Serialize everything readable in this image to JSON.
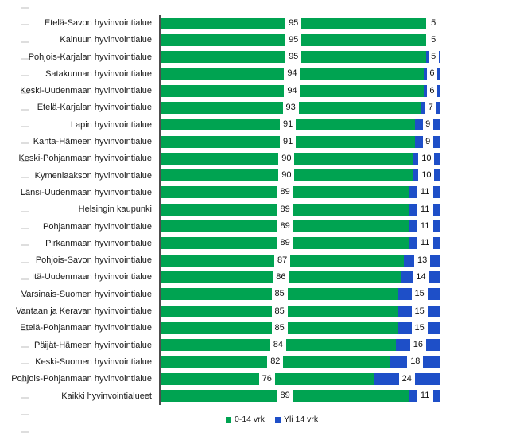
{
  "chart_data": {
    "type": "bar",
    "orientation": "horizontal",
    "stacked": true,
    "percent_total": 100,
    "xlim": [
      0,
      100
    ],
    "grid": false,
    "legend_position": "bottom",
    "series_meta": [
      {
        "name": "0-14 vrk",
        "color": "#00A351"
      },
      {
        "name": "Yli 14 vrk",
        "color": "#1E4FC8"
      }
    ],
    "categories": [
      "Etelä-Savon hyvinvointialue",
      "Kainuun hyvinvointialue",
      "Pohjois-Karjalan hyvinvointialue",
      "Satakunnan hyvinvointialue",
      "Keski-Uudenmaan hyvinvointialue",
      "Etelä-Karjalan hyvinvointialue",
      "Lapin hyvinvointialue",
      "Kanta-Hämeen hyvinvointialue",
      "Keski-Pohjanmaan hyvinvointialue",
      "Kymenlaakson hyvinvointialue",
      "Länsi-Uudenmaan hyvinvointialue",
      "Helsingin kaupunki",
      "Pohjanmaan hyvinvointialue",
      "Pirkanmaan hyvinvointialue",
      "Pohjois-Savon hyvinvointialue",
      "Itä-Uudenmaan hyvinvointialue",
      "Varsinais-Suomen hyvinvointialue",
      "Vantaan ja Keravan hyvinvointialue",
      "Etelä-Pohjanmaan hyvinvointialue",
      "Päijät-Hämeen hyvinvointialue",
      "Keski-Suomen hyvinvointialue",
      "Pohjois-Pohjanmaan hyvinvointialue",
      "Kaikki hyvinvointialueet"
    ],
    "rows": [
      {
        "label": "Etelä-Savon hyvinvointialue",
        "green": 95,
        "blue": 5,
        "blue_segment_visible": false
      },
      {
        "label": "Kainuun hyvinvointialue",
        "green": 95,
        "blue": 5,
        "blue_segment_visible": false
      },
      {
        "label": "Pohjois-Karjalan hyvinvointialue",
        "green": 95,
        "blue": 5,
        "blue_segment_visible": true
      },
      {
        "label": "Satakunnan hyvinvointialue",
        "green": 94,
        "blue": 6,
        "blue_segment_visible": true
      },
      {
        "label": "Keski-Uudenmaan hyvinvointialue",
        "green": 94,
        "blue": 6,
        "blue_segment_visible": true
      },
      {
        "label": "Etelä-Karjalan hyvinvointialue",
        "green": 93,
        "blue": 7,
        "blue_segment_visible": true
      },
      {
        "label": "Lapin hyvinvointialue",
        "green": 91,
        "blue": 9,
        "blue_segment_visible": true
      },
      {
        "label": "Kanta-Hämeen hyvinvointialue",
        "green": 91,
        "blue": 9,
        "blue_segment_visible": true
      },
      {
        "label": "Keski-Pohjanmaan hyvinvointialue",
        "green": 90,
        "blue": 10,
        "blue_segment_visible": true
      },
      {
        "label": "Kymenlaakson hyvinvointialue",
        "green": 90,
        "blue": 10,
        "blue_segment_visible": true
      },
      {
        "label": "Länsi-Uudenmaan hyvinvointialue",
        "green": 89,
        "blue": 11,
        "blue_segment_visible": true
      },
      {
        "label": "Helsingin kaupunki",
        "green": 89,
        "blue": 11,
        "blue_segment_visible": true
      },
      {
        "label": "Pohjanmaan hyvinvointialue",
        "green": 89,
        "blue": 11,
        "blue_segment_visible": true
      },
      {
        "label": "Pirkanmaan hyvinvointialue",
        "green": 89,
        "blue": 11,
        "blue_segment_visible": true
      },
      {
        "label": "Pohjois-Savon hyvinvointialue",
        "green": 87,
        "blue": 13,
        "blue_segment_visible": true
      },
      {
        "label": "Itä-Uudenmaan hyvinvointialue",
        "green": 86,
        "blue": 14,
        "blue_segment_visible": true
      },
      {
        "label": "Varsinais-Suomen hyvinvointialue",
        "green": 85,
        "blue": 15,
        "blue_segment_visible": true
      },
      {
        "label": "Vantaan ja Keravan hyvinvointialue",
        "green": 85,
        "blue": 15,
        "blue_segment_visible": true
      },
      {
        "label": "Etelä-Pohjanmaan hyvinvointialue",
        "green": 85,
        "blue": 15,
        "blue_segment_visible": true
      },
      {
        "label": "Päijät-Hämeen hyvinvointialue",
        "green": 84,
        "blue": 16,
        "blue_segment_visible": true
      },
      {
        "label": "Keski-Suomen hyvinvointialue",
        "green": 82,
        "blue": 18,
        "blue_segment_visible": true
      },
      {
        "label": "Pohjois-Pohjanmaan hyvinvointialue",
        "green": 76,
        "blue": 24,
        "blue_segment_visible": true
      },
      {
        "label": "Kaikki hyvinvointialueet",
        "green": 89,
        "blue": 11,
        "blue_segment_visible": true
      }
    ],
    "legend": {
      "items": [
        {
          "label": "0-14 vrk",
          "color": "#00A351"
        },
        {
          "label": "Yli 14 vrk",
          "color": "#1E4FC8"
        }
      ]
    }
  }
}
